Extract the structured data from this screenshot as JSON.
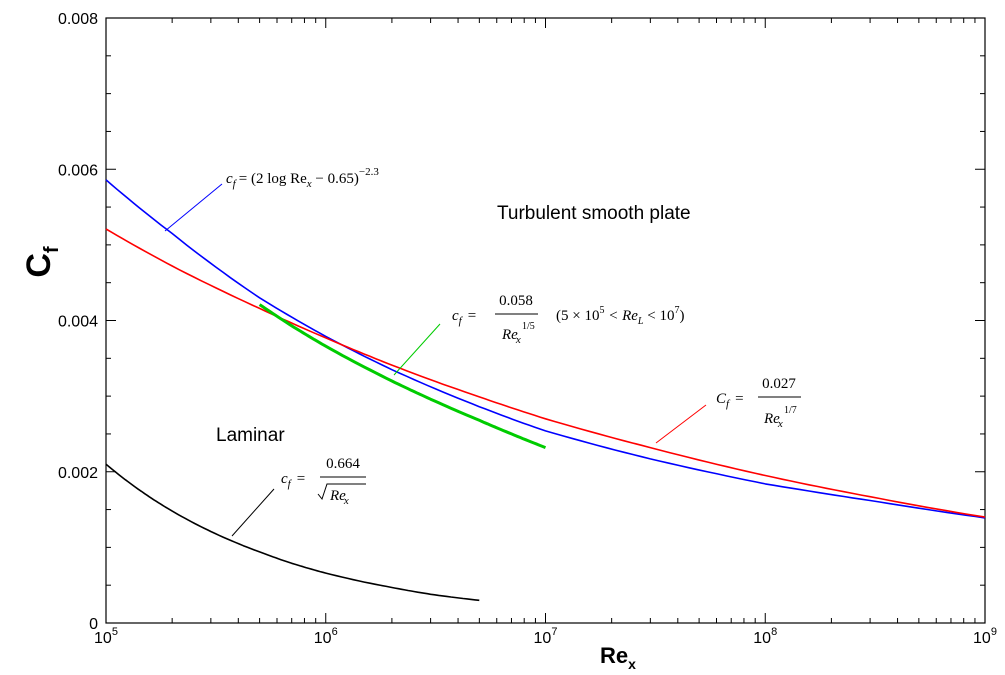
{
  "chart_data": {
    "type": "line",
    "xscale": "log",
    "xlim": [
      100000,
      1000000000
    ],
    "ylim": [
      0,
      0.008
    ],
    "xlabel": "Re",
    "xlabel_sub": "x",
    "ylabel": "C",
    "ylabel_sub": "f",
    "xticks": [
      {
        "value": 100000,
        "base": "10",
        "exp": "5"
      },
      {
        "value": 1000000,
        "base": "10",
        "exp": "6"
      },
      {
        "value": 10000000,
        "base": "10",
        "exp": "7"
      },
      {
        "value": 100000000,
        "base": "10",
        "exp": "8"
      },
      {
        "value": 1000000000,
        "base": "10",
        "exp": "9"
      }
    ],
    "yticks": [
      {
        "value": 0,
        "label": "0"
      },
      {
        "value": 0.002,
        "label": "0.002"
      },
      {
        "value": 0.004,
        "label": "0.004"
      },
      {
        "value": 0.006,
        "label": "0.006"
      },
      {
        "value": 0.008,
        "label": "0.008"
      }
    ],
    "series": [
      {
        "color": "#0000ff",
        "x": [
          100000,
          200000,
          500000,
          1000000,
          2000000,
          5000000,
          10000000,
          30000000,
          100000000,
          300000000,
          1000000000
        ],
        "y": [
          0.00586,
          0.00515,
          0.0043,
          0.00379,
          0.00335,
          0.00286,
          0.00254,
          0.00217,
          0.00184,
          0.00162,
          0.00139
        ]
      },
      {
        "color": "#ff0000",
        "x": [
          100000,
          200000,
          500000,
          1000000,
          2000000,
          5000000,
          10000000,
          30000000,
          100000000,
          300000000,
          1000000000
        ],
        "y": [
          0.00521,
          0.00472,
          0.00416,
          0.00377,
          0.00341,
          0.00299,
          0.0027,
          0.00232,
          0.00195,
          0.00167,
          0.0014
        ]
      },
      {
        "color": "#00cc00",
        "x": [
          500000,
          700000,
          1000000,
          2000000,
          3000000,
          5000000,
          7000000,
          10000000
        ],
        "y": [
          0.00421,
          0.00393,
          0.00366,
          0.0032,
          0.00296,
          0.00268,
          0.0025,
          0.00232
        ]
      },
      {
        "color": "#000000",
        "x": [
          100000,
          150000,
          200000,
          300000,
          500000,
          700000,
          1000000,
          2000000,
          3000000,
          5000000
        ],
        "y": [
          0.0021,
          0.00171,
          0.00148,
          0.00121,
          0.00094,
          0.00079,
          0.00066,
          0.00047,
          0.00038,
          0.0003
        ]
      }
    ],
    "annotations": {
      "region_turbulent": "Turbulent smooth plate",
      "region_laminar": "Laminar",
      "eq_blue": {
        "lhs": "c",
        "lhs_sub": "f",
        "body": "= (2 log Re",
        "sub": "x",
        "tail": " − 0.65)",
        "sup": "−2.3"
      },
      "eq_green": {
        "lhs": "c",
        "lhs_sub": "f",
        "eq": "=",
        "num": "0.058",
        "den": "Re",
        "den_sub": "x",
        "den_sup": "1/5",
        "range": "(5 × 10",
        "range_sup": "5",
        "range_mid": " < Re",
        "range_sub": "L",
        "range_end": " < 10",
        "range_sup2": "7",
        "range_close": ")"
      },
      "eq_red": {
        "lhs": "C",
        "lhs_sub": "f",
        "eq": "=",
        "num": "0.027",
        "den": "Re",
        "den_sub": "x",
        "den_sup": "1/7"
      },
      "eq_black": {
        "lhs": "c",
        "lhs_sub": "f",
        "eq": "=",
        "num": "0.664",
        "den": "Re",
        "den_sub": "x"
      }
    }
  }
}
